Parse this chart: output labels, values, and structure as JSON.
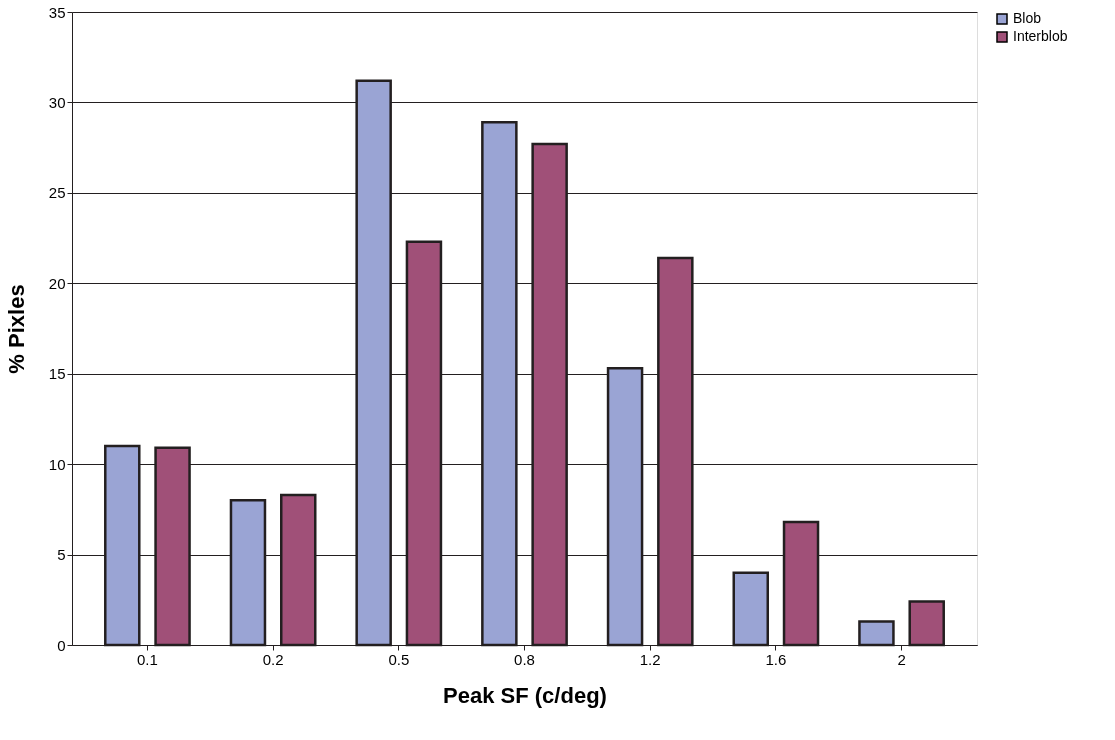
{
  "chart_data": {
    "type": "bar",
    "xlabel": "Peak SF (c/deg)",
    "ylabel": "% Pixles",
    "categories": [
      "0.1",
      "0.2",
      "0.5",
      "0.8",
      "1.2",
      "1.6",
      "2"
    ],
    "series": [
      {
        "name": "Blob",
        "color": "#9aa4d4",
        "values": [
          11.0,
          8.0,
          31.2,
          28.9,
          15.3,
          4.0,
          1.3
        ]
      },
      {
        "name": "Interblob",
        "color": "#a05078",
        "values": [
          10.9,
          8.3,
          22.3,
          27.7,
          21.4,
          6.8,
          2.4
        ]
      }
    ],
    "ylim": [
      0,
      35
    ],
    "yticks": [
      0,
      5,
      10,
      15,
      20,
      25,
      30,
      35
    ],
    "grid": "y",
    "legend": "right"
  }
}
